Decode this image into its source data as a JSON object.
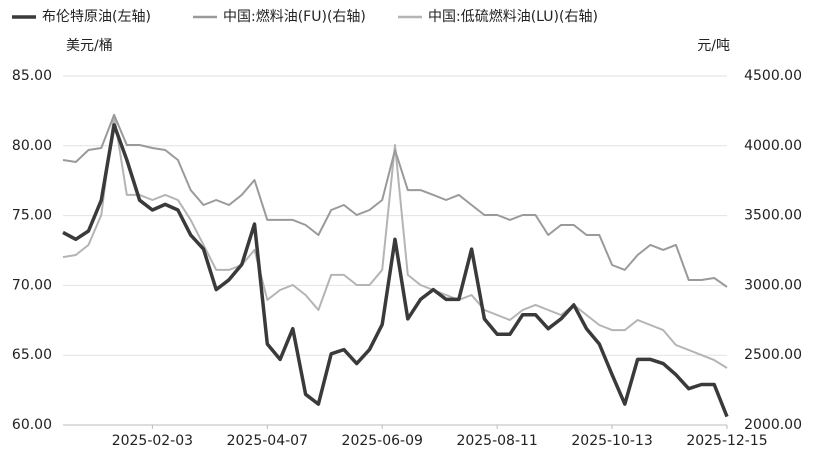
{
  "chart_data": {
    "type": "line",
    "y_label": "美元/桶",
    "y2_label": "元/吨",
    "x": [
      "2024-12-16",
      "2024-12-23",
      "2024-12-30",
      "2025-01-06",
      "2025-01-13",
      "2025-01-20",
      "2025-01-27",
      "2025-02-03",
      "2025-02-10",
      "2025-02-17",
      "2025-02-24",
      "2025-03-03",
      "2025-03-10",
      "2025-03-17",
      "2025-03-24",
      "2025-03-31",
      "2025-04-07",
      "2025-04-14",
      "2025-04-21",
      "2025-04-28",
      "2025-05-05",
      "2025-05-12",
      "2025-05-19",
      "2025-05-26",
      "2025-06-02",
      "2025-06-09",
      "2025-06-16",
      "2025-06-23",
      "2025-06-30",
      "2025-07-07",
      "2025-07-14",
      "2025-07-21",
      "2025-07-28",
      "2025-08-04",
      "2025-08-11",
      "2025-08-18",
      "2025-08-25",
      "2025-09-01",
      "2025-09-08",
      "2025-09-15",
      "2025-09-22",
      "2025-09-29",
      "2025-10-06",
      "2025-10-13",
      "2025-10-20",
      "2025-10-27",
      "2025-11-03",
      "2025-11-10",
      "2025-11-17",
      "2025-11-24",
      "2025-12-01",
      "2025-12-08",
      "2025-12-15"
    ],
    "xlim": [
      "2024-12-16",
      "2025-12-15"
    ],
    "xticks": [
      "2025-02-03",
      "2025-04-07",
      "2025-06-09",
      "2025-08-11",
      "2025-10-13",
      "2025-12-15"
    ],
    "ylim": [
      60,
      85
    ],
    "yticks": [
      {
        "value": 60,
        "label": "60.00"
      },
      {
        "value": 65,
        "label": "65.00"
      },
      {
        "value": 70,
        "label": "70.00"
      },
      {
        "value": 75,
        "label": "75.00"
      },
      {
        "value": 80,
        "label": "80.00"
      },
      {
        "value": 85,
        "label": "85.00"
      }
    ],
    "y2lim": [
      2000,
      4500
    ],
    "y2ticks": [
      {
        "value": 2000,
        "label": "2000.00"
      },
      {
        "value": 2500,
        "label": "2500.00"
      },
      {
        "value": 3000,
        "label": "3000.00"
      },
      {
        "value": 3500,
        "label": "3500.00"
      },
      {
        "value": 4000,
        "label": "4000.00"
      },
      {
        "value": 4500,
        "label": "4500.00"
      }
    ],
    "grid": true,
    "series": [
      {
        "name": "布伦特原油(左轴)",
        "color": "#3a3a3a",
        "values": [
          73.8,
          73.3,
          73.9,
          76.1,
          81.5,
          79,
          76.1,
          75.4,
          75.8,
          75.4,
          73.6,
          72.6,
          69.7,
          70.4,
          71.5,
          74.4,
          65.8,
          64.7,
          66.9,
          62.2,
          61.5,
          65.1,
          65.4,
          64.4,
          65.4,
          67.2,
          73.3,
          67.6,
          69,
          69.7,
          69,
          69,
          72.6,
          67.6,
          66.5,
          66.5,
          67.9,
          67.9,
          66.9,
          67.6,
          68.6,
          66.9,
          65.8,
          63.6,
          61.5,
          64.7,
          64.7,
          64.4,
          63.6,
          62.6,
          62.9,
          62.9,
          60.6
        ]
      },
      {
        "name": "中国:燃料油(FU)(右轴)",
        "color": "#9a9a9a",
        "axis": "y2",
        "values": [
          3898,
          3884,
          3970,
          3984,
          4221,
          4006,
          4006,
          3984,
          3970,
          3898,
          3683,
          3576,
          3612,
          3576,
          3648,
          3755,
          3469,
          3469,
          3469,
          3433,
          3361,
          3540,
          3576,
          3504,
          3540,
          3612,
          3970,
          3683,
          3683,
          3648,
          3612,
          3648,
          3576,
          3504,
          3504,
          3469,
          3504,
          3504,
          3361,
          3433,
          3433,
          3361,
          3361,
          3146,
          3111,
          3218,
          3290,
          3254,
          3290,
          3039,
          3039,
          3053,
          2989
        ]
      },
      {
        "name": "中国:低硫燃料油(LU)(右轴)",
        "color": "#b4b4b4",
        "axis": "y2",
        "values": [
          3203,
          3218,
          3290,
          3504,
          4221,
          3648,
          3648,
          3612,
          3648,
          3612,
          3469,
          3290,
          3111,
          3111,
          3146,
          3254,
          2896,
          2967,
          3003,
          2931,
          2824,
          3075,
          3075,
          3003,
          3003,
          3111,
          4006,
          3075,
          3003,
          2967,
          2931,
          2896,
          2931,
          2824,
          2788,
          2752,
          2824,
          2860,
          2824,
          2788,
          2860,
          2788,
          2716,
          2680,
          2680,
          2752,
          2716,
          2680,
          2573,
          2537,
          2501,
          2465,
          2408
        ]
      }
    ]
  }
}
